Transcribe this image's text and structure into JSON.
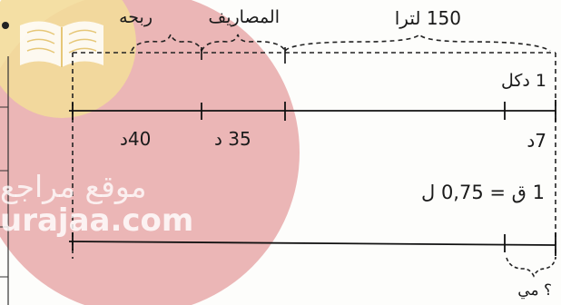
{
  "diagram": {
    "top_labels": {
      "total": "150 لترا",
      "expenses": "المصاريف",
      "profit": "ربحه"
    },
    "first_bar": {
      "unit": "1 دكل",
      "value_profit": "40د",
      "value_expenses": "35 د",
      "value_total": "7د"
    },
    "second_bar": {
      "equation": "1 ق = 0,75 ل",
      "question": "؟ مي"
    }
  },
  "watermark": {
    "text_arabic": "موقع مراجع",
    "text_latin": "urajaa.com",
    "colors": {
      "circle": "#e8a9a9",
      "badge": "#f3dc9a"
    }
  }
}
